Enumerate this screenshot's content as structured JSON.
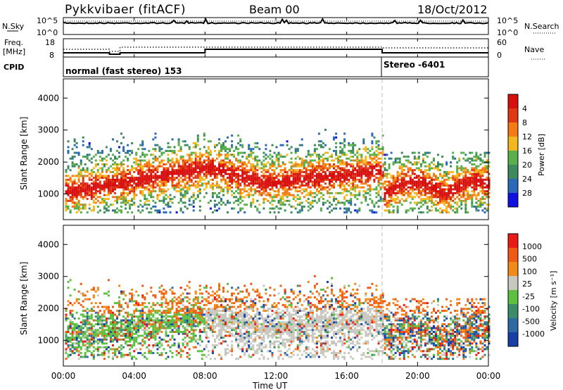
{
  "header": {
    "station": "Pykkvibaer (fitACF)",
    "beam": "Beam 00",
    "date": "18/Oct/2012"
  },
  "noise_panel": {
    "left_label": "N.Sky",
    "right_label": "N.Search",
    "ticks_left": [
      "10^5",
      "10^0"
    ],
    "ticks_right": [
      "10^5",
      "10^0"
    ]
  },
  "freq_panel": {
    "left_label_line1": "Freq.",
    "left_label_line2": "[MHz]",
    "right_label": "Nave",
    "ticks_left": [
      "18",
      "8"
    ],
    "ticks_right": [
      "60",
      "0"
    ]
  },
  "cpid": {
    "label": "CPID",
    "segments": [
      {
        "text": "normal (fast stereo) 153",
        "start_hour": 0
      },
      {
        "text": "Stereo -6401",
        "start_hour": 18
      }
    ]
  },
  "chart_data": [
    {
      "type": "heatmap",
      "name": "Power",
      "ylabel": "Slant Range [km]",
      "xlabel": "Time UT",
      "xlim": [
        0,
        24
      ],
      "ylim": [
        200,
        4600
      ],
      "x_tick_labels": [
        "00:00",
        "04:00",
        "08:00",
        "12:00",
        "16:00",
        "20:00",
        "00:00"
      ],
      "y_ticks": [
        1000,
        2000,
        3000,
        4000
      ],
      "colorbar": {
        "label": "Power [dB]",
        "ticks": [
          "4",
          "8",
          "12",
          "16",
          "20",
          "24",
          "28"
        ],
        "colors": [
          "#1010e0",
          "#2a6ab8",
          "#3e8a5e",
          "#58b04a",
          "#f2b81e",
          "#f47a14",
          "#e03814",
          "#d80f0f"
        ]
      }
    },
    {
      "type": "heatmap",
      "name": "Velocity",
      "ylabel": "Slant Range [km]",
      "xlabel": "Time UT",
      "xlim": [
        0,
        24
      ],
      "ylim": [
        200,
        4600
      ],
      "x_tick_labels": [
        "00:00",
        "04:00",
        "08:00",
        "12:00",
        "16:00",
        "20:00",
        "00:00"
      ],
      "y_ticks": [
        1000,
        2000,
        3000,
        4000
      ],
      "colorbar": {
        "label": "Velocity [m s⁻¹]",
        "ticks": [
          "1000",
          "500",
          "100",
          "25",
          "-25",
          "-100",
          "-500",
          "-1000"
        ],
        "colors": [
          "#1a3ea8",
          "#2d6aa6",
          "#3a8c6a",
          "#5cc040",
          "#c8c8c0",
          "#f28a1a",
          "#f05a14",
          "#e81c14"
        ]
      }
    }
  ]
}
